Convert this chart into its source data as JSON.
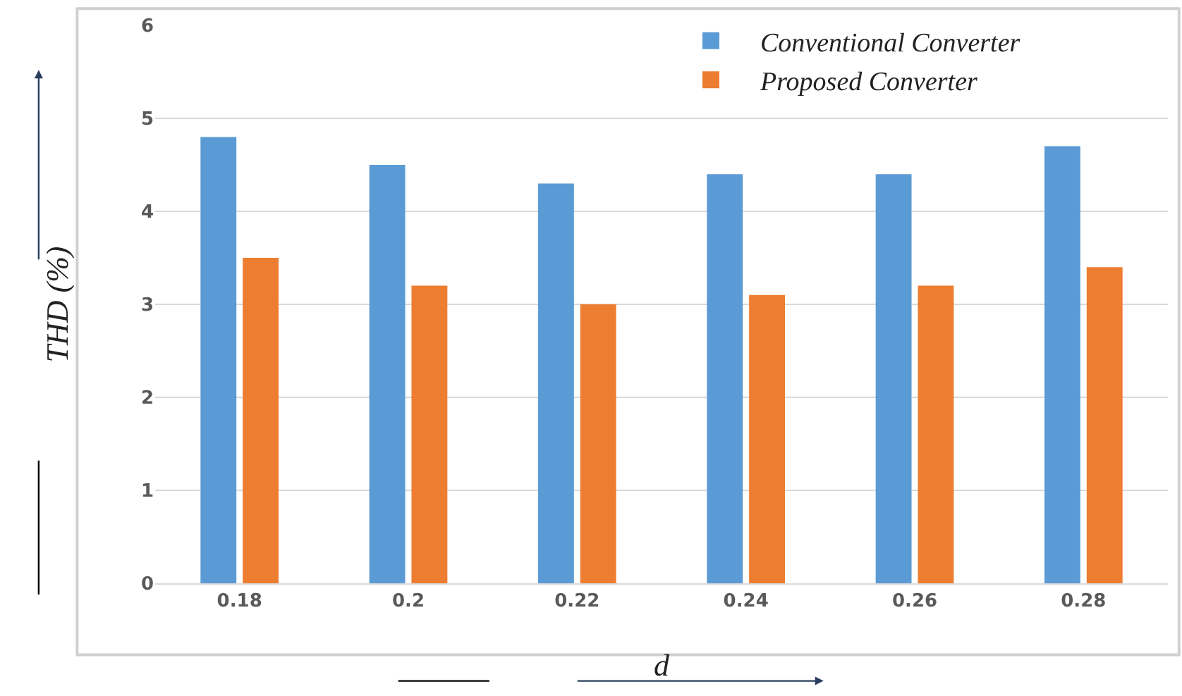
{
  "chart_data": {
    "type": "bar",
    "xlabel": "d",
    "ylabel": "THD (%)",
    "categories": [
      "0.18",
      "0.2",
      "0.22",
      "0.24",
      "0.26",
      "0.28"
    ],
    "series": [
      {
        "name": "Conventional Converter",
        "color": "#5b9bd5",
        "values": [
          4.8,
          4.5,
          4.3,
          4.4,
          4.4,
          4.7
        ]
      },
      {
        "name": "Proposed Converter",
        "color": "#ed7d31",
        "values": [
          3.5,
          3.2,
          3.0,
          3.1,
          3.2,
          3.4
        ]
      }
    ],
    "ylim": [
      0,
      6
    ],
    "yticks": [
      0,
      1,
      2,
      3,
      4,
      5,
      6
    ],
    "grid": "y",
    "legend": "top right"
  }
}
